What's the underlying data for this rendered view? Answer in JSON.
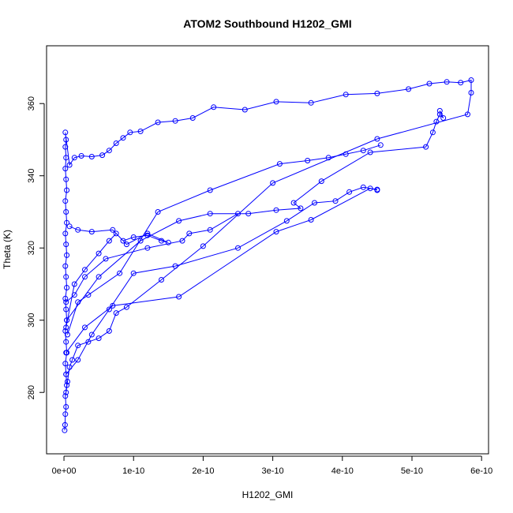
{
  "chart_data": {
    "type": "line",
    "title": "ATOM2 Southbound H1202_GMI",
    "xlabel": "H1202_GMI",
    "ylabel": "Theta (K)",
    "xlim": [
      -2.5e-11,
      6.1e-10
    ],
    "ylim": [
      263,
      376
    ],
    "x_ticks": [
      0,
      1e-10,
      2e-10,
      3e-10,
      4e-10,
      5e-10,
      6e-10
    ],
    "x_tick_labels": [
      "0e+00",
      "1e-10",
      "2e-10",
      "3e-10",
      "4e-10",
      "5e-10",
      "6e-10"
    ],
    "y_ticks": [
      280,
      300,
      320,
      340,
      360
    ],
    "y_tick_labels": [
      "280",
      "300",
      "320",
      "340",
      "360"
    ],
    "grid": false,
    "legend": "none",
    "series": [
      {
        "color": "#0000ff",
        "marker": "open-circle",
        "points": [
          [
            1e-12,
            269.5
          ],
          [
            1.5e-12,
            271
          ],
          [
            2e-12,
            274
          ],
          [
            3e-12,
            276
          ],
          [
            2e-12,
            279
          ],
          [
            4e-12,
            282
          ],
          [
            3e-12,
            285
          ],
          [
            2e-12,
            288
          ],
          [
            4e-12,
            291
          ],
          [
            3e-12,
            294
          ],
          [
            2e-12,
            297
          ],
          [
            4e-12,
            300
          ],
          [
            3e-12,
            303
          ],
          [
            2e-12,
            306
          ],
          [
            4e-12,
            309
          ],
          [
            3e-12,
            312
          ],
          [
            2e-12,
            315
          ],
          [
            4e-12,
            318
          ],
          [
            3e-12,
            321
          ],
          [
            2e-12,
            324
          ],
          [
            4e-12,
            327
          ],
          [
            3e-12,
            330
          ],
          [
            2e-12,
            333
          ],
          [
            4e-12,
            336
          ],
          [
            3e-12,
            339
          ],
          [
            2e-12,
            342
          ],
          [
            3e-12,
            345
          ],
          [
            2e-12,
            348
          ],
          [
            3e-12,
            350
          ],
          [
            2e-12,
            352
          ],
          [
            8e-12,
            343
          ],
          [
            1.5e-11,
            345
          ],
          [
            2.5e-11,
            345.5
          ],
          [
            4e-11,
            345.3
          ],
          [
            5.5e-11,
            345.7
          ],
          [
            6.5e-11,
            347
          ],
          [
            7.5e-11,
            349
          ],
          [
            8.5e-11,
            350.5
          ],
          [
            9.5e-11,
            352
          ],
          [
            1.1e-10,
            352.3
          ],
          [
            1.35e-10,
            354.8
          ],
          [
            1.6e-10,
            355.2
          ],
          [
            1.85e-10,
            356
          ],
          [
            2.15e-10,
            359
          ],
          [
            2.6e-10,
            358.3
          ],
          [
            3.05e-10,
            360.5
          ],
          [
            3.55e-10,
            360.2
          ],
          [
            4.05e-10,
            362.5
          ],
          [
            4.5e-10,
            362.8
          ],
          [
            4.95e-10,
            364
          ],
          [
            5.25e-10,
            365.5
          ],
          [
            5.5e-10,
            366
          ],
          [
            5.7e-10,
            365.8
          ],
          [
            5.85e-10,
            366.5
          ],
          [
            5.85e-10,
            363
          ],
          [
            5.8e-10,
            357
          ],
          [
            4.5e-10,
            350.2
          ],
          [
            3e-10,
            338
          ],
          [
            2e-10,
            320.5
          ],
          [
            1.4e-10,
            311.2
          ],
          [
            9e-11,
            303.6
          ],
          [
            7.5e-11,
            302
          ],
          [
            6.5e-11,
            297
          ],
          [
            5e-11,
            295
          ],
          [
            3.5e-11,
            294
          ],
          [
            2e-11,
            293
          ],
          [
            1.2e-11,
            289
          ],
          [
            8e-12,
            287
          ],
          [
            5e-12,
            283
          ],
          [
            3e-12,
            280
          ]
        ]
      },
      {
        "color": "#0000ff",
        "marker": "open-circle",
        "points": [
          [
            3e-12,
            298
          ],
          [
            1.5e-11,
            310
          ],
          [
            3e-11,
            314
          ],
          [
            5e-11,
            318.5
          ],
          [
            6.5e-11,
            322
          ],
          [
            7.5e-11,
            324
          ],
          [
            8.5e-11,
            322
          ],
          [
            1e-10,
            323
          ],
          [
            1.2e-10,
            323.5
          ],
          [
            1.4e-10,
            322
          ],
          [
            1.5e-10,
            321.5
          ],
          [
            1.2e-10,
            324
          ],
          [
            9e-11,
            321
          ],
          [
            7e-11,
            325
          ],
          [
            4e-11,
            324.5
          ],
          [
            2e-11,
            325
          ],
          [
            8e-12,
            326
          ]
        ]
      },
      {
        "color": "#0000ff",
        "marker": "open-circle",
        "points": [
          [
            3e-12,
            285
          ],
          [
            2e-11,
            289
          ],
          [
            4e-11,
            296
          ],
          [
            6.5e-11,
            303
          ],
          [
            1e-10,
            313
          ],
          [
            1.6e-10,
            315
          ],
          [
            2.5e-10,
            320
          ],
          [
            3.2e-10,
            327.5
          ],
          [
            3.6e-10,
            332.5
          ],
          [
            3.9e-10,
            333
          ],
          [
            4.1e-10,
            335.5
          ],
          [
            4.3e-10,
            336.8
          ],
          [
            4.5e-10,
            336.2
          ]
        ]
      },
      {
        "color": "#0000ff",
        "marker": "open-circle",
        "points": [
          [
            3e-12,
            291
          ],
          [
            3e-11,
            298
          ],
          [
            7e-11,
            304
          ],
          [
            1.65e-10,
            306.5
          ],
          [
            3.05e-10,
            324.5
          ],
          [
            3.55e-10,
            327.8
          ],
          [
            4.4e-10,
            336.5
          ],
          [
            4.5e-10,
            336
          ]
        ]
      },
      {
        "color": "#0000ff",
        "marker": "open-circle",
        "points": [
          [
            5e-12,
            296
          ],
          [
            2e-11,
            305
          ],
          [
            3.5e-11,
            307
          ],
          [
            8e-11,
            313
          ],
          [
            1.35e-10,
            330
          ],
          [
            2.1e-10,
            336
          ],
          [
            3.1e-10,
            343.3
          ],
          [
            3.5e-10,
            344.2
          ],
          [
            3.8e-10,
            345
          ],
          [
            4.05e-10,
            346
          ],
          [
            4.3e-10,
            347
          ],
          [
            4.55e-10,
            348.5
          ]
        ]
      },
      {
        "color": "#0000ff",
        "marker": "open-circle",
        "points": [
          [
            4e-12,
            300
          ],
          [
            5e-11,
            312
          ],
          [
            1.1e-10,
            322
          ],
          [
            1.65e-10,
            327.5
          ],
          [
            2.1e-10,
            329.5
          ],
          [
            2.65e-10,
            329.5
          ],
          [
            3.05e-10,
            330.5
          ],
          [
            3.4e-10,
            331
          ],
          [
            3.3e-10,
            332.5
          ],
          [
            3.7e-10,
            338.5
          ],
          [
            4.4e-10,
            346.5
          ],
          [
            5.2e-10,
            348
          ],
          [
            5.3e-10,
            352
          ],
          [
            5.35e-10,
            355
          ],
          [
            5.4e-10,
            357
          ],
          [
            5.45e-10,
            356
          ],
          [
            5.4e-10,
            358
          ]
        ]
      },
      {
        "color": "#0000ff",
        "marker": "open-circle",
        "points": [
          [
            3e-12,
            305
          ],
          [
            1.5e-11,
            307
          ],
          [
            3e-11,
            312
          ],
          [
            6e-11,
            317
          ],
          [
            1.2e-10,
            320
          ],
          [
            1.7e-10,
            322
          ],
          [
            1.8e-10,
            324
          ],
          [
            2.1e-10,
            325
          ],
          [
            2.5e-10,
            329.5
          ]
        ]
      }
    ]
  }
}
